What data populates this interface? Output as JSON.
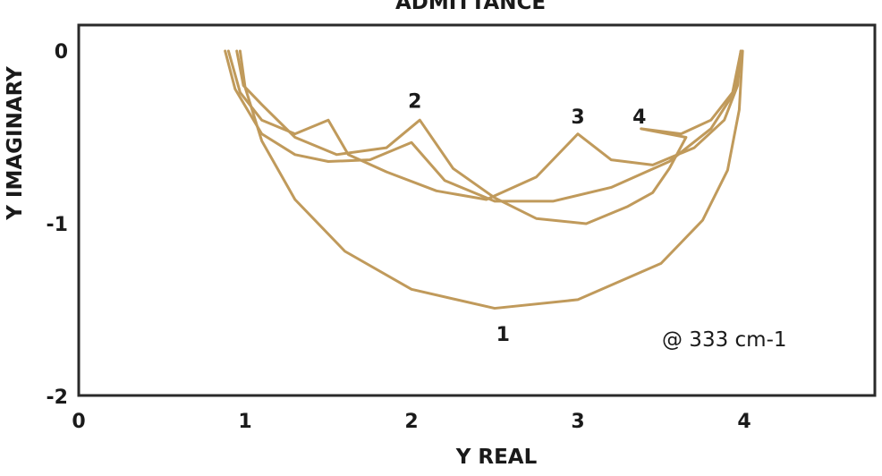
{
  "chart_data": {
    "type": "line",
    "title": "ADMITTANCE",
    "xlabel": "Y REAL",
    "ylabel": "Y IMAGINARY",
    "xlim": [
      0,
      4.75
    ],
    "ylim": [
      -2,
      0.15
    ],
    "xticks": [
      0,
      1,
      2,
      3,
      4
    ],
    "xtick_labels": [
      "0",
      "1",
      "2",
      "3",
      "4"
    ],
    "yticks": [
      0,
      -1,
      -2
    ],
    "ytick_labels": [
      "0",
      "-1",
      "-2"
    ],
    "grid": false,
    "annotation": "@ 333 cm-1",
    "line_color": "#c09a5b",
    "series": [
      {
        "label": "1",
        "label_pos": [
          2.55,
          -1.68
        ],
        "points": [
          [
            0.97,
            0.0
          ],
          [
            1.0,
            -0.21
          ],
          [
            1.1,
            -0.52
          ],
          [
            1.3,
            -0.86
          ],
          [
            1.6,
            -1.16
          ],
          [
            2.0,
            -1.38
          ],
          [
            2.5,
            -1.49
          ],
          [
            3.0,
            -1.44
          ],
          [
            3.5,
            -1.23
          ],
          [
            3.75,
            -0.98
          ],
          [
            3.9,
            -0.69
          ],
          [
            3.97,
            -0.34
          ],
          [
            3.99,
            0.0
          ]
        ]
      },
      {
        "label": "2",
        "label_pos": [
          2.02,
          -0.33
        ],
        "points": [
          [
            0.88,
            0.0
          ],
          [
            0.94,
            -0.22
          ],
          [
            1.1,
            -0.48
          ],
          [
            1.3,
            -0.6
          ],
          [
            1.5,
            -0.64
          ],
          [
            1.75,
            -0.63
          ],
          [
            2.0,
            -0.53
          ],
          [
            2.2,
            -0.75
          ],
          [
            2.5,
            -0.87
          ],
          [
            2.85,
            -0.87
          ],
          [
            3.2,
            -0.79
          ],
          [
            3.55,
            -0.64
          ],
          [
            3.8,
            -0.45
          ],
          [
            3.94,
            -0.24
          ],
          [
            3.98,
            0.0
          ]
        ]
      },
      {
        "label": "3",
        "label_pos": [
          3.0,
          -0.42
        ],
        "points": [
          [
            0.9,
            0.0
          ],
          [
            0.97,
            -0.24
          ],
          [
            1.1,
            -0.4
          ],
          [
            1.3,
            -0.48
          ],
          [
            1.5,
            -0.4
          ],
          [
            1.62,
            -0.6
          ],
          [
            1.85,
            -0.7
          ],
          [
            2.15,
            -0.81
          ],
          [
            2.45,
            -0.86
          ],
          [
            2.75,
            -0.73
          ],
          [
            3.0,
            -0.48
          ],
          [
            3.2,
            -0.63
          ],
          [
            3.45,
            -0.66
          ],
          [
            3.7,
            -0.56
          ],
          [
            3.88,
            -0.4
          ],
          [
            3.96,
            -0.2
          ],
          [
            3.98,
            0.0
          ]
        ]
      },
      {
        "label": "4",
        "label_pos": [
          3.37,
          -0.42
        ],
        "points": [
          [
            0.95,
            0.0
          ],
          [
            0.99,
            -0.2
          ],
          [
            1.1,
            -0.31
          ],
          [
            1.3,
            -0.5
          ],
          [
            1.55,
            -0.6
          ],
          [
            1.85,
            -0.56
          ],
          [
            2.05,
            -0.4
          ],
          [
            2.25,
            -0.68
          ],
          [
            2.5,
            -0.85
          ],
          [
            2.75,
            -0.97
          ],
          [
            3.05,
            -1.0
          ],
          [
            3.3,
            -0.9
          ],
          [
            3.45,
            -0.82
          ],
          [
            3.55,
            -0.68
          ],
          [
            3.65,
            -0.5
          ],
          [
            3.38,
            -0.45
          ],
          [
            3.62,
            -0.48
          ],
          [
            3.8,
            -0.4
          ],
          [
            3.93,
            -0.24
          ],
          [
            3.98,
            0.0
          ]
        ]
      }
    ]
  }
}
